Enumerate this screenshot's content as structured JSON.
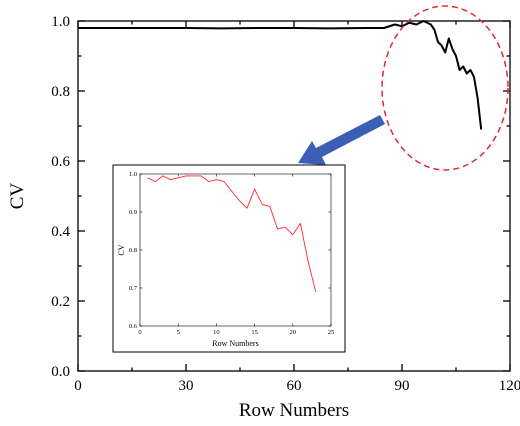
{
  "chart_data": [
    {
      "type": "line",
      "xlabel": "Row Numbers",
      "ylabel": "CV",
      "xlim": [
        0,
        120
      ],
      "ylim": [
        0.0,
        1.0
      ],
      "xticks": [
        "0",
        "30",
        "60",
        "90",
        "120"
      ],
      "yticks": [
        "0.0",
        "0.2",
        "0.4",
        "0.6",
        "0.8",
        "1.0"
      ],
      "series": [
        {
          "color": "#000000",
          "x": [
            0,
            10,
            20,
            30,
            40,
            50,
            60,
            70,
            80,
            85,
            88,
            90,
            92,
            94,
            96,
            98,
            99,
            100,
            101,
            102,
            103,
            104,
            105,
            106,
            107,
            108,
            109,
            110,
            111,
            112
          ],
          "y": [
            0.98,
            0.98,
            0.98,
            0.98,
            0.979,
            0.98,
            0.98,
            0.979,
            0.98,
            0.98,
            0.99,
            0.985,
            0.995,
            0.99,
            1.0,
            0.99,
            0.975,
            0.94,
            0.93,
            0.91,
            0.95,
            0.92,
            0.9,
            0.86,
            0.87,
            0.85,
            0.86,
            0.84,
            0.78,
            0.69
          ]
        }
      ],
      "highlight_color": "#e8282b",
      "arrow_color": "#3a5fb5"
    },
    {
      "type": "line",
      "xlabel": "Row Numbers",
      "ylabel": "CV",
      "xlim": [
        0,
        25
      ],
      "ylim": [
        0.6,
        1.0
      ],
      "xticks": [
        "0",
        "5",
        "10",
        "15",
        "20",
        "25"
      ],
      "yticks": [
        "0.6",
        "0.7",
        "0.8",
        "0.9",
        "1.0"
      ],
      "series": [
        {
          "color": "#ff2a2a",
          "x": [
            1,
            2,
            3,
            4,
            5,
            6,
            7,
            8,
            9,
            10,
            11,
            12,
            13,
            14,
            15,
            16,
            17,
            18,
            19,
            20,
            21,
            22,
            23
          ],
          "y": [
            0.99,
            0.98,
            0.995,
            0.985,
            0.99,
            0.995,
            0.995,
            0.995,
            0.98,
            0.985,
            0.98,
            0.955,
            0.93,
            0.91,
            0.96,
            0.92,
            0.915,
            0.855,
            0.86,
            0.84,
            0.87,
            0.77,
            0.69
          ]
        }
      ]
    }
  ]
}
